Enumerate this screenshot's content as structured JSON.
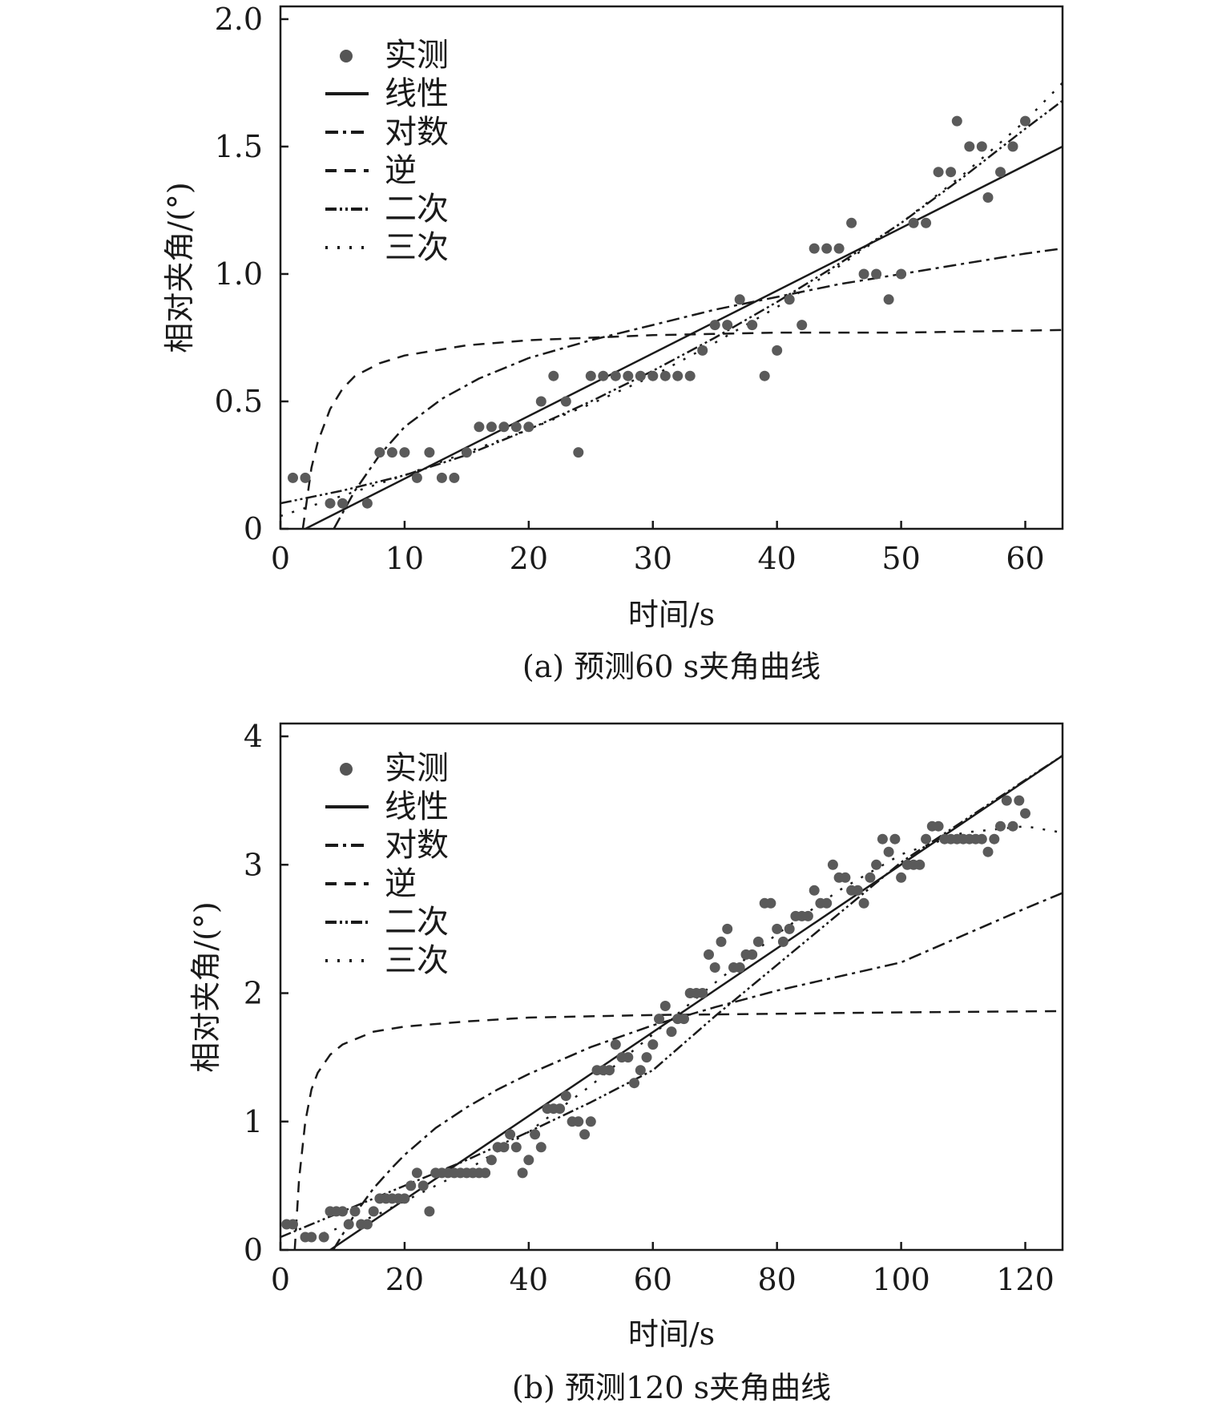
{
  "chart_data": [
    {
      "type": "scatter",
      "caption": "(a) 预测60 s夹角曲线",
      "xlabel": "时间/s",
      "ylabel": "相对夹角/(°)",
      "xlim": [
        0,
        63
      ],
      "ylim": [
        0,
        2.05
      ],
      "xticks": [
        0,
        10,
        20,
        30,
        40,
        50,
        60
      ],
      "yticks": [
        0,
        0.5,
        1.0,
        1.5,
        2.0
      ],
      "ytick_labels": [
        "0",
        "0.5",
        "1.0",
        "1.5",
        "2.0"
      ],
      "grid": false,
      "legend_position": "top-left",
      "legend": [
        "实测",
        "线性",
        "对数",
        "逆",
        "二次",
        "三次"
      ],
      "measured": [
        [
          1,
          0.2
        ],
        [
          2,
          0.2
        ],
        [
          4,
          0.1
        ],
        [
          5,
          0.1
        ],
        [
          7,
          0.1
        ],
        [
          8,
          0.3
        ],
        [
          9,
          0.3
        ],
        [
          10,
          0.3
        ],
        [
          11,
          0.2
        ],
        [
          12,
          0.3
        ],
        [
          13,
          0.2
        ],
        [
          14,
          0.2
        ],
        [
          15,
          0.3
        ],
        [
          16,
          0.4
        ],
        [
          17,
          0.4
        ],
        [
          18,
          0.4
        ],
        [
          19,
          0.4
        ],
        [
          20,
          0.4
        ],
        [
          21,
          0.5
        ],
        [
          22,
          0.6
        ],
        [
          23,
          0.5
        ],
        [
          24,
          0.3
        ],
        [
          25,
          0.6
        ],
        [
          26,
          0.6
        ],
        [
          27,
          0.6
        ],
        [
          28,
          0.6
        ],
        [
          29,
          0.6
        ],
        [
          30,
          0.6
        ],
        [
          31,
          0.6
        ],
        [
          32,
          0.6
        ],
        [
          33,
          0.6
        ],
        [
          34,
          0.7
        ],
        [
          35,
          0.8
        ],
        [
          36,
          0.8
        ],
        [
          37,
          0.9
        ],
        [
          38,
          0.8
        ],
        [
          39,
          0.6
        ],
        [
          40,
          0.7
        ],
        [
          41,
          0.9
        ],
        [
          42,
          0.8
        ],
        [
          43,
          1.1
        ],
        [
          44,
          1.1
        ],
        [
          45,
          1.1
        ],
        [
          46,
          1.2
        ],
        [
          47,
          1.0
        ],
        [
          48,
          1.0
        ],
        [
          49,
          0.9
        ],
        [
          50,
          1.0
        ],
        [
          51,
          1.2
        ],
        [
          52,
          1.2
        ],
        [
          53,
          1.4
        ],
        [
          54,
          1.4
        ],
        [
          54.5,
          1.6
        ],
        [
          55.5,
          1.5
        ],
        [
          56.5,
          1.5
        ],
        [
          57,
          1.3
        ],
        [
          58,
          1.4
        ],
        [
          59,
          1.5
        ],
        [
          60,
          1.6
        ]
      ],
      "fits": {
        "linear": {
          "x": [
            2,
            63
          ],
          "y": [
            0,
            1.5
          ]
        },
        "logarithmic": {
          "x": [
            4.3,
            6,
            8,
            10,
            13,
            16,
            20,
            25,
            30,
            35,
            40,
            45,
            50,
            55,
            60,
            63
          ],
          "y": [
            0,
            0.15,
            0.29,
            0.4,
            0.51,
            0.59,
            0.67,
            0.74,
            0.8,
            0.86,
            0.91,
            0.96,
            1.0,
            1.04,
            1.08,
            1.1
          ]
        },
        "inverse": {
          "x": [
            1.8,
            2.5,
            3,
            4,
            5,
            6,
            8,
            10,
            15,
            20,
            30,
            40,
            50,
            63
          ],
          "y": [
            0,
            0.24,
            0.34,
            0.47,
            0.55,
            0.6,
            0.65,
            0.68,
            0.72,
            0.74,
            0.76,
            0.77,
            0.77,
            0.78
          ]
        },
        "quadratic": {
          "x": [
            0,
            5,
            10,
            15,
            20,
            25,
            30,
            35,
            40,
            45,
            50,
            55,
            60,
            63
          ],
          "y": [
            0.1,
            0.15,
            0.21,
            0.29,
            0.39,
            0.5,
            0.62,
            0.75,
            0.89,
            1.04,
            1.2,
            1.38,
            1.57,
            1.68
          ]
        },
        "cubic": {
          "x": [
            0,
            5,
            10,
            15,
            20,
            25,
            30,
            35,
            40,
            45,
            50,
            55,
            60,
            63
          ],
          "y": [
            0.05,
            0.13,
            0.21,
            0.3,
            0.39,
            0.49,
            0.6,
            0.73,
            0.87,
            1.03,
            1.2,
            1.39,
            1.6,
            1.75
          ]
        }
      }
    },
    {
      "type": "scatter",
      "caption": "(b) 预测120 s夹角曲线",
      "xlabel": "时间/s",
      "ylabel": "相对夹角/(°)",
      "xlim": [
        0,
        126
      ],
      "ylim": [
        0,
        4.1
      ],
      "xticks": [
        0,
        20,
        40,
        60,
        80,
        100,
        120
      ],
      "yticks": [
        0,
        1,
        2,
        3,
        4
      ],
      "ytick_labels": [
        "0",
        "1",
        "2",
        "3",
        "4"
      ],
      "grid": false,
      "legend_position": "top-left",
      "legend": [
        "实测",
        "线性",
        "对数",
        "逆",
        "二次",
        "三次"
      ],
      "measured": [
        [
          1,
          0.2
        ],
        [
          2,
          0.2
        ],
        [
          4,
          0.1
        ],
        [
          5,
          0.1
        ],
        [
          7,
          0.1
        ],
        [
          8,
          0.3
        ],
        [
          9,
          0.3
        ],
        [
          10,
          0.3
        ],
        [
          11,
          0.2
        ],
        [
          12,
          0.3
        ],
        [
          13,
          0.2
        ],
        [
          14,
          0.2
        ],
        [
          15,
          0.3
        ],
        [
          16,
          0.4
        ],
        [
          17,
          0.4
        ],
        [
          18,
          0.4
        ],
        [
          19,
          0.4
        ],
        [
          20,
          0.4
        ],
        [
          21,
          0.5
        ],
        [
          22,
          0.6
        ],
        [
          23,
          0.5
        ],
        [
          24,
          0.3
        ],
        [
          25,
          0.6
        ],
        [
          26,
          0.6
        ],
        [
          27,
          0.6
        ],
        [
          28,
          0.6
        ],
        [
          29,
          0.6
        ],
        [
          30,
          0.6
        ],
        [
          31,
          0.6
        ],
        [
          32,
          0.6
        ],
        [
          33,
          0.6
        ],
        [
          34,
          0.7
        ],
        [
          35,
          0.8
        ],
        [
          36,
          0.8
        ],
        [
          37,
          0.9
        ],
        [
          38,
          0.8
        ],
        [
          39,
          0.6
        ],
        [
          40,
          0.7
        ],
        [
          41,
          0.9
        ],
        [
          42,
          0.8
        ],
        [
          43,
          1.1
        ],
        [
          44,
          1.1
        ],
        [
          45,
          1.1
        ],
        [
          46,
          1.2
        ],
        [
          47,
          1.0
        ],
        [
          48,
          1.0
        ],
        [
          49,
          0.9
        ],
        [
          50,
          1.0
        ],
        [
          51,
          1.4
        ],
        [
          52,
          1.4
        ],
        [
          53,
          1.4
        ],
        [
          54,
          1.6
        ],
        [
          55,
          1.5
        ],
        [
          56,
          1.5
        ],
        [
          57,
          1.3
        ],
        [
          58,
          1.4
        ],
        [
          59,
          1.5
        ],
        [
          60,
          1.6
        ],
        [
          61,
          1.8
        ],
        [
          62,
          1.9
        ],
        [
          63,
          1.7
        ],
        [
          64,
          1.8
        ],
        [
          65,
          1.8
        ],
        [
          66,
          2.0
        ],
        [
          67,
          2.0
        ],
        [
          68,
          2.0
        ],
        [
          69,
          2.3
        ],
        [
          70,
          2.2
        ],
        [
          71,
          2.4
        ],
        [
          72,
          2.5
        ],
        [
          73,
          2.2
        ],
        [
          74,
          2.2
        ],
        [
          75,
          2.3
        ],
        [
          76,
          2.3
        ],
        [
          77,
          2.4
        ],
        [
          78,
          2.7
        ],
        [
          79,
          2.7
        ],
        [
          80,
          2.5
        ],
        [
          81,
          2.4
        ],
        [
          82,
          2.5
        ],
        [
          83,
          2.6
        ],
        [
          84,
          2.6
        ],
        [
          85,
          2.6
        ],
        [
          86,
          2.8
        ],
        [
          87,
          2.7
        ],
        [
          88,
          2.7
        ],
        [
          89,
          3.0
        ],
        [
          90,
          2.9
        ],
        [
          91,
          2.9
        ],
        [
          92,
          2.8
        ],
        [
          93,
          2.8
        ],
        [
          94,
          2.7
        ],
        [
          95,
          2.9
        ],
        [
          96,
          3.0
        ],
        [
          97,
          3.2
        ],
        [
          98,
          3.1
        ],
        [
          99,
          3.2
        ],
        [
          100,
          2.9
        ],
        [
          101,
          3.0
        ],
        [
          102,
          3.0
        ],
        [
          103,
          3.0
        ],
        [
          104,
          3.2
        ],
        [
          105,
          3.3
        ],
        [
          106,
          3.3
        ],
        [
          107,
          3.2
        ],
        [
          108,
          3.2
        ],
        [
          109,
          3.2
        ],
        [
          110,
          3.2
        ],
        [
          111,
          3.2
        ],
        [
          112,
          3.2
        ],
        [
          113,
          3.2
        ],
        [
          114,
          3.1
        ],
        [
          115,
          3.2
        ],
        [
          116,
          3.3
        ],
        [
          117,
          3.5
        ],
        [
          118,
          3.3
        ],
        [
          119,
          3.5
        ],
        [
          120,
          3.4
        ]
      ],
      "fits": {
        "linear": {
          "x": [
            8,
            126
          ],
          "y": [
            0,
            3.85
          ]
        },
        "logarithmic": {
          "x": [
            8.5,
            10,
            12,
            15,
            18,
            20,
            25,
            30,
            35,
            40,
            50,
            60,
            70,
            80,
            90,
            100,
            110,
            120,
            126
          ],
          "y": [
            0,
            0.12,
            0.28,
            0.48,
            0.64,
            0.74,
            0.95,
            1.11,
            1.25,
            1.37,
            1.58,
            1.75,
            1.89,
            2.02,
            2.13,
            2.24,
            2.45,
            2.66,
            2.78
          ]
        },
        "inverse": {
          "x": [
            2.3,
            3,
            4,
            5,
            6,
            8,
            10,
            15,
            20,
            30,
            40,
            60,
            80,
            100,
            126
          ],
          "y": [
            0,
            0.55,
            1.0,
            1.25,
            1.38,
            1.52,
            1.6,
            1.7,
            1.74,
            1.78,
            1.81,
            1.83,
            1.84,
            1.85,
            1.86
          ]
        },
        "quadratic": {
          "x": [
            0,
            10,
            20,
            30,
            40,
            50,
            60,
            70,
            80,
            90,
            100,
            110,
            120,
            126
          ],
          "y": [
            0.1,
            0.3,
            0.5,
            0.7,
            0.92,
            1.15,
            1.4,
            1.82,
            2.22,
            2.62,
            3.02,
            3.34,
            3.66,
            3.85
          ]
        },
        "cubic": {
          "x": [
            5,
            10,
            15,
            20,
            30,
            40,
            50,
            60,
            70,
            80,
            90,
            100,
            110,
            120,
            126
          ],
          "y": [
            0.1,
            0.18,
            0.26,
            0.38,
            0.62,
            0.92,
            1.28,
            1.68,
            2.08,
            2.46,
            2.8,
            3.08,
            3.25,
            3.3,
            3.25
          ]
        }
      }
    }
  ]
}
